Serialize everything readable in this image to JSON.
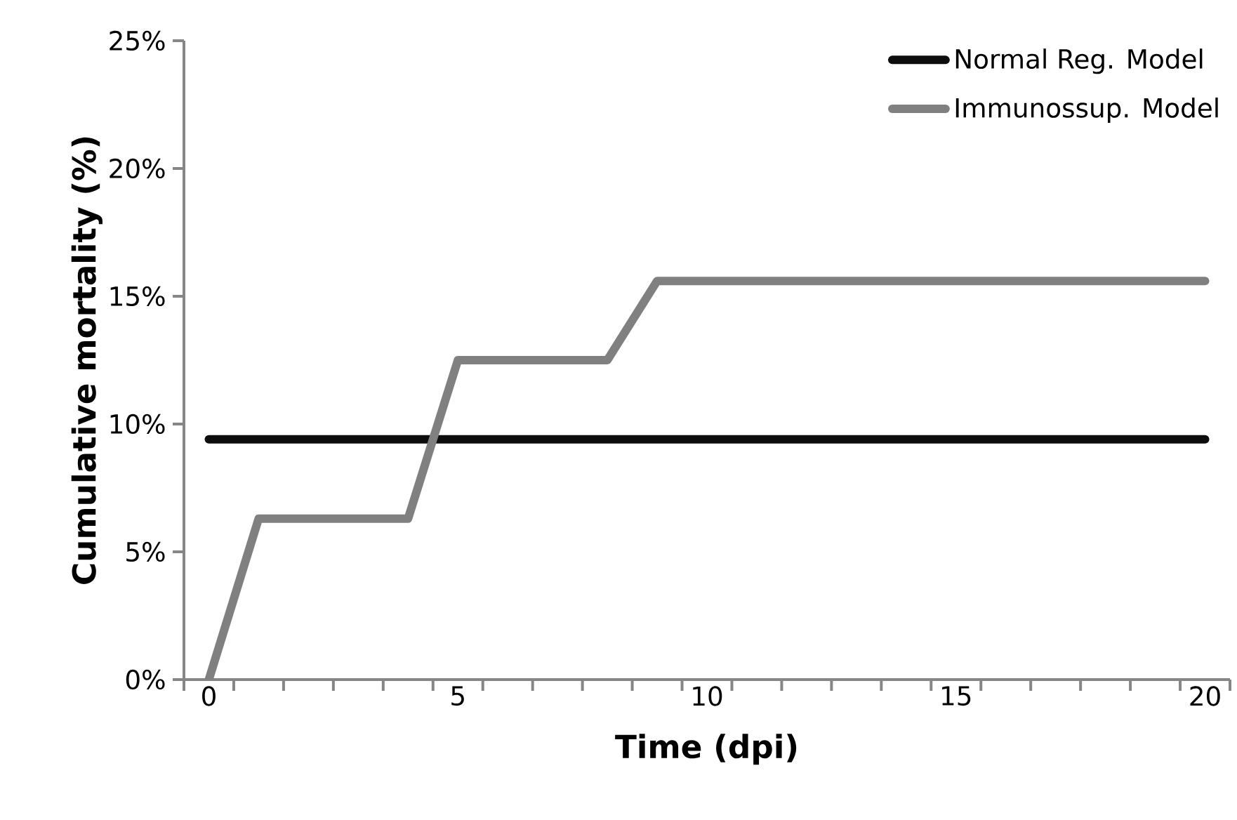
{
  "chart_data": {
    "type": "line",
    "xlabel": "Time (dpi)",
    "ylabel": "Cumulative mortality (%)",
    "categories": [
      "0",
      null,
      null,
      null,
      null,
      "5",
      null,
      null,
      null,
      null,
      "10",
      null,
      null,
      null,
      null,
      "15",
      null,
      null,
      null,
      null,
      "20"
    ],
    "series": [
      {
        "name": "Normal Reg. Model",
        "color": "#0d0d0d",
        "values": [
          9.4,
          9.4,
          9.4,
          9.4,
          9.4,
          9.4,
          9.4,
          9.4,
          9.4,
          9.4,
          9.4,
          9.4,
          9.4,
          9.4,
          9.4,
          9.4,
          9.4,
          9.4,
          9.4,
          9.4,
          9.4
        ]
      },
      {
        "name": "Immunossup. Model",
        "color": "#808080",
        "values": [
          0,
          6.3,
          6.3,
          6.3,
          6.3,
          12.5,
          12.5,
          12.5,
          12.5,
          15.6,
          15.6,
          15.6,
          15.6,
          15.6,
          15.6,
          15.6,
          15.6,
          15.6,
          15.6,
          15.6,
          15.6
        ]
      }
    ],
    "ylim": [
      0,
      25
    ],
    "yticks": [
      {
        "value": 0,
        "label": "0%"
      },
      {
        "value": 5,
        "label": "5%"
      },
      {
        "value": 10,
        "label": "10%"
      },
      {
        "value": 15,
        "label": "15%"
      },
      {
        "value": 20,
        "label": "20%"
      },
      {
        "value": 25,
        "label": "25%"
      }
    ],
    "grid": false,
    "legend": "top right"
  }
}
